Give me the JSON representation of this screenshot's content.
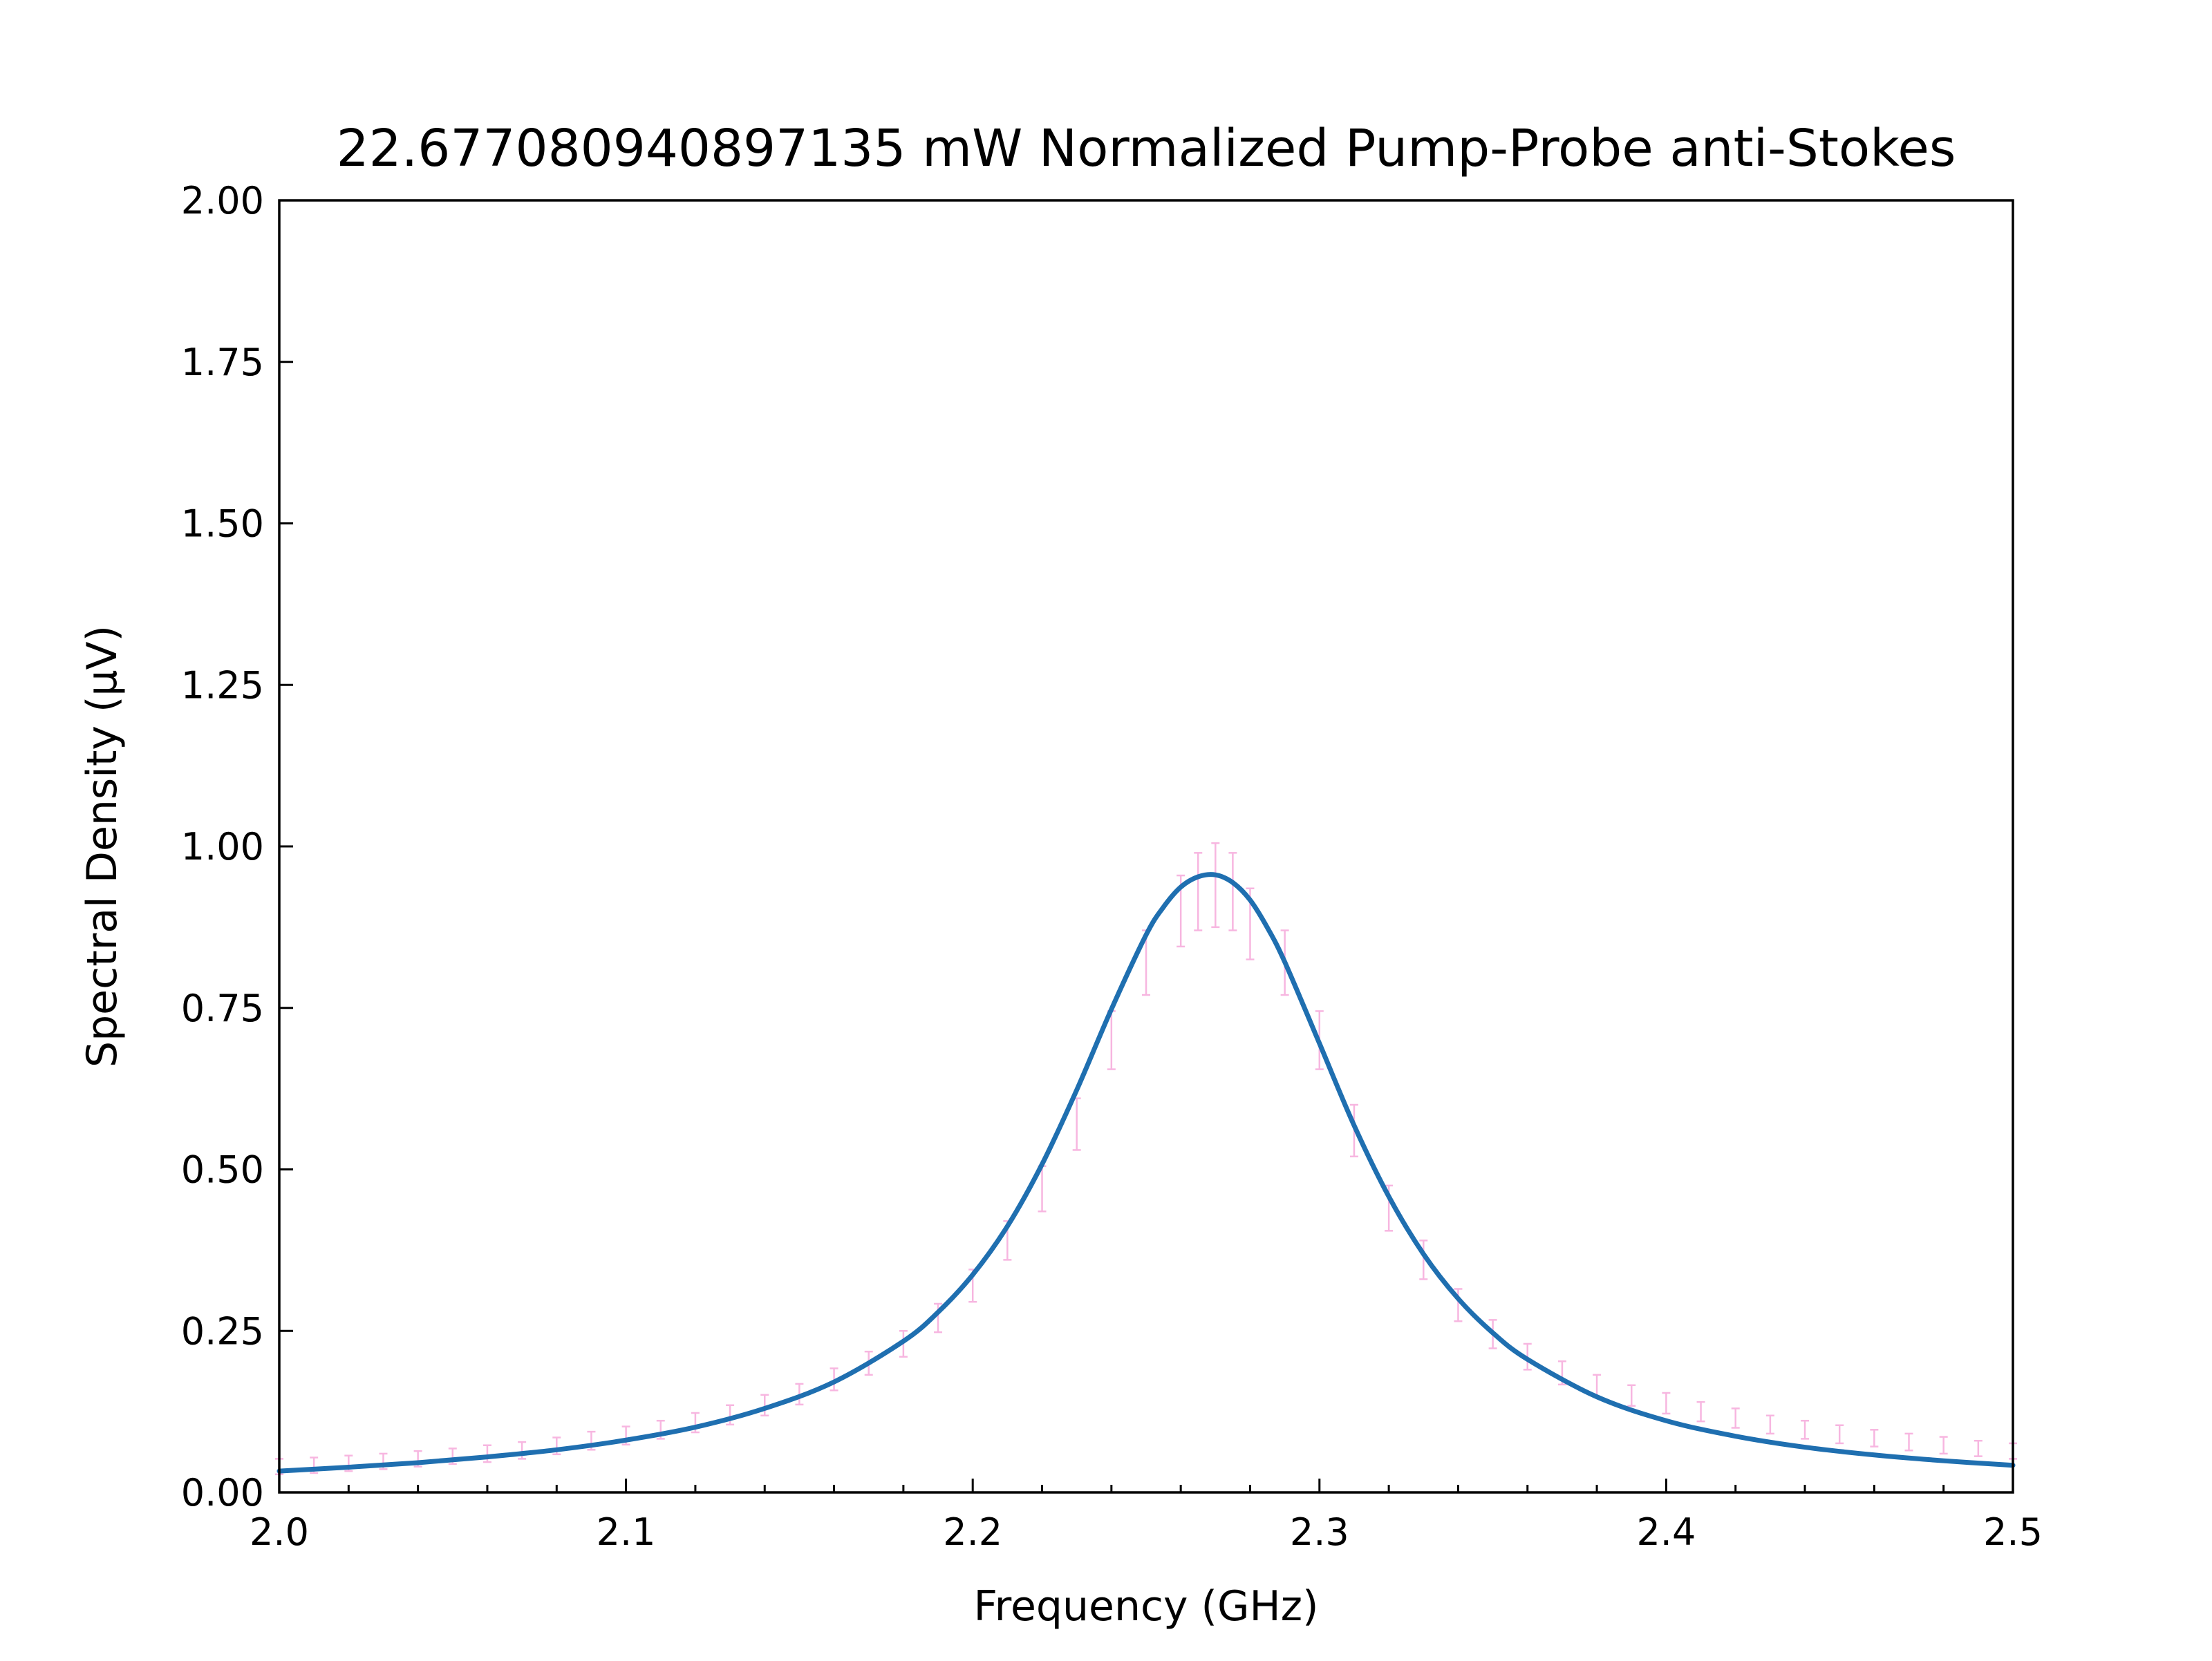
{
  "chart_data": {
    "type": "line",
    "title": "22.677080940897135 mW Normalized Pump-Probe anti-Stokes",
    "xlabel": "Frequency (GHz)",
    "ylabel": "Spectral Density (μV)",
    "xlim": [
      2.0,
      2.5
    ],
    "ylim": [
      0.0,
      2.0
    ],
    "xticks": [
      2.0,
      2.1,
      2.2,
      2.3,
      2.4,
      2.5
    ],
    "xtick_labels": [
      "2.0",
      "2.1",
      "2.2",
      "2.3",
      "2.4",
      "2.5"
    ],
    "yticks": [
      0.0,
      0.25,
      0.5,
      0.75,
      1.0,
      1.25,
      1.5,
      1.75,
      2.0
    ],
    "ytick_labels": [
      "0.00",
      "0.25",
      "0.50",
      "0.75",
      "1.00",
      "1.25",
      "1.50",
      "1.75",
      "2.00"
    ],
    "x_minor_tick_step": 0.02,
    "grid": false,
    "legend": "none",
    "series": [
      {
        "kind": "errorbar",
        "color": "#f7b6e0",
        "x": [
          2.0,
          2.01,
          2.02,
          2.03,
          2.04,
          2.05,
          2.06,
          2.07,
          2.08,
          2.09,
          2.1,
          2.11,
          2.12,
          2.13,
          2.14,
          2.15,
          2.16,
          2.17,
          2.18,
          2.19,
          2.2,
          2.21,
          2.22,
          2.23,
          2.24,
          2.25,
          2.26,
          2.265,
          2.27,
          2.275,
          2.28,
          2.29,
          2.3,
          2.31,
          2.32,
          2.33,
          2.34,
          2.35,
          2.36,
          2.37,
          2.38,
          2.39,
          2.4,
          2.41,
          2.42,
          2.43,
          2.44,
          2.45,
          2.46,
          2.47,
          2.48,
          2.49,
          2.5
        ],
        "y": [
          0.04,
          0.042,
          0.045,
          0.048,
          0.052,
          0.056,
          0.06,
          0.065,
          0.072,
          0.08,
          0.088,
          0.097,
          0.108,
          0.12,
          0.135,
          0.152,
          0.175,
          0.2,
          0.23,
          0.27,
          0.32,
          0.39,
          0.47,
          0.57,
          0.7,
          0.82,
          0.9,
          0.93,
          0.94,
          0.93,
          0.88,
          0.82,
          0.7,
          0.56,
          0.44,
          0.36,
          0.29,
          0.245,
          0.21,
          0.185,
          0.165,
          0.15,
          0.138,
          0.125,
          0.115,
          0.105,
          0.097,
          0.09,
          0.084,
          0.078,
          0.073,
          0.068,
          0.064
        ],
        "yerr": [
          0.012,
          0.012,
          0.012,
          0.012,
          0.012,
          0.012,
          0.013,
          0.013,
          0.013,
          0.014,
          0.014,
          0.014,
          0.015,
          0.015,
          0.016,
          0.016,
          0.017,
          0.018,
          0.02,
          0.022,
          0.025,
          0.03,
          0.035,
          0.04,
          0.045,
          0.05,
          0.055,
          0.06,
          0.065,
          0.06,
          0.055,
          0.05,
          0.045,
          0.04,
          0.035,
          0.03,
          0.025,
          0.022,
          0.02,
          0.018,
          0.017,
          0.016,
          0.016,
          0.015,
          0.015,
          0.014,
          0.014,
          0.014,
          0.013,
          0.013,
          0.013,
          0.012,
          0.012
        ]
      },
      {
        "kind": "line",
        "color": "#1f6fb0",
        "x": [
          2.0,
          2.02,
          2.04,
          2.06,
          2.08,
          2.1,
          2.12,
          2.14,
          2.16,
          2.18,
          2.19,
          2.2,
          2.21,
          2.22,
          2.23,
          2.24,
          2.25,
          2.255,
          2.26,
          2.265,
          2.27,
          2.275,
          2.28,
          2.285,
          2.29,
          2.3,
          2.31,
          2.32,
          2.33,
          2.34,
          2.35,
          2.36,
          2.38,
          2.4,
          2.42,
          2.44,
          2.46,
          2.48,
          2.5
        ],
        "y": [
          0.033,
          0.039,
          0.046,
          0.055,
          0.066,
          0.081,
          0.101,
          0.13,
          0.171,
          0.234,
          0.279,
          0.337,
          0.412,
          0.508,
          0.623,
          0.748,
          0.863,
          0.906,
          0.937,
          0.953,
          0.956,
          0.944,
          0.917,
          0.874,
          0.821,
          0.695,
          0.568,
          0.458,
          0.369,
          0.3,
          0.247,
          0.206,
          0.148,
          0.111,
          0.087,
          0.07,
          0.058,
          0.049,
          0.042
        ]
      }
    ]
  }
}
